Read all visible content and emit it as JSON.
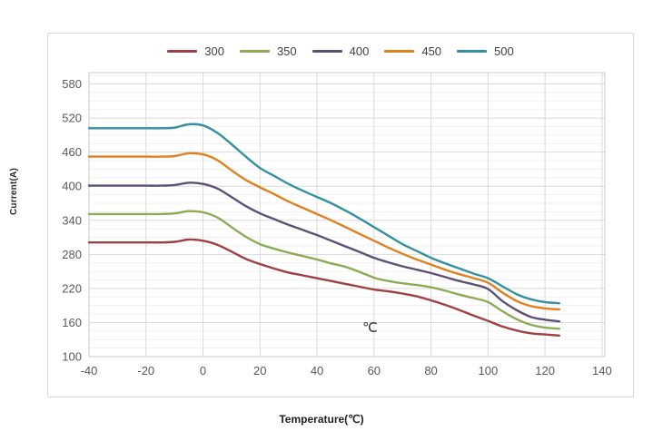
{
  "chart_data": {
    "type": "line",
    "title": "",
    "xlabel": "Temperature(℃)",
    "ylabel": "Current(A)",
    "annotation": "℃",
    "xlim": [
      -40,
      140
    ],
    "ylim": [
      100,
      600
    ],
    "x_ticks": [
      -40,
      -20,
      0,
      20,
      40,
      60,
      80,
      100,
      120,
      140
    ],
    "y_ticks": [
      100,
      160,
      220,
      280,
      340,
      400,
      460,
      520,
      580
    ],
    "x_tick_step": 20,
    "y_tick_step": 60,
    "y_minor_step": 15,
    "grid": true,
    "legend_position": "top",
    "style": {
      "major_grid_color": "#d9d9d9",
      "minor_grid_color": "#f1f1f1",
      "plot_border_color": "#d2d2d2",
      "tick_label_color": "#595959",
      "line_width": 2.4
    },
    "x": [
      -40,
      -30,
      -20,
      -15,
      -10,
      -5,
      0,
      5,
      10,
      15,
      20,
      25,
      30,
      35,
      40,
      45,
      50,
      55,
      60,
      65,
      70,
      75,
      80,
      85,
      90,
      95,
      100,
      105,
      110,
      115,
      120,
      125
    ],
    "series": [
      {
        "name": "300",
        "color": "#9c4145",
        "values": [
          301,
          301,
          301,
          301,
          302,
          306,
          304,
          297,
          285,
          272,
          263,
          255,
          248,
          243,
          238,
          233,
          228,
          223,
          218,
          215,
          211,
          206,
          199,
          191,
          182,
          172,
          163,
          153,
          146,
          141,
          139,
          137
        ]
      },
      {
        "name": "350",
        "color": "#8cab55",
        "values": [
          351,
          351,
          351,
          351,
          352,
          356,
          354,
          345,
          328,
          311,
          298,
          290,
          283,
          277,
          271,
          264,
          258,
          249,
          239,
          233,
          229,
          226,
          222,
          216,
          209,
          203,
          196,
          180,
          166,
          156,
          151,
          149
        ]
      },
      {
        "name": "400",
        "color": "#5c5174",
        "values": [
          401,
          401,
          401,
          401,
          402,
          406,
          404,
          396,
          381,
          365,
          352,
          342,
          332,
          323,
          314,
          304,
          294,
          284,
          274,
          266,
          259,
          253,
          247,
          240,
          233,
          227,
          219,
          198,
          182,
          170,
          165,
          162
        ]
      },
      {
        "name": "450",
        "color": "#e0801f",
        "values": [
          452,
          452,
          452,
          452,
          453,
          458,
          456,
          446,
          428,
          411,
          398,
          386,
          373,
          362,
          351,
          340,
          328,
          316,
          304,
          292,
          281,
          271,
          262,
          253,
          245,
          238,
          230,
          213,
          198,
          189,
          185,
          183
        ]
      },
      {
        "name": "500",
        "color": "#35909f",
        "values": [
          502,
          502,
          502,
          502,
          503,
          509,
          507,
          494,
          474,
          452,
          432,
          418,
          404,
          392,
          381,
          370,
          357,
          343,
          328,
          313,
          298,
          286,
          274,
          264,
          255,
          246,
          238,
          224,
          210,
          201,
          196,
          194
        ]
      }
    ]
  }
}
